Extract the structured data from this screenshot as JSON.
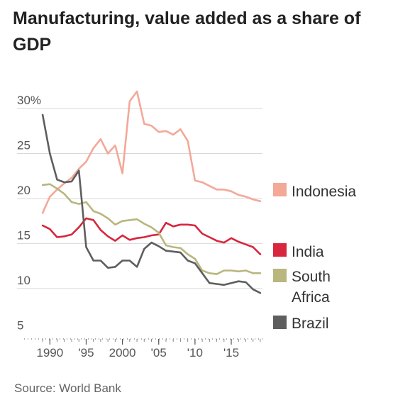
{
  "title": "Manufacturing, value added as a share of GDP",
  "source": "Source: World Bank",
  "chart_data": {
    "type": "line",
    "title": "Manufacturing, value added as a share of GDP",
    "xlabel": "",
    "ylabel": "",
    "xlim": [
      1988.6,
      2019.3
    ],
    "ylim": [
      4,
      33
    ],
    "grid": true,
    "legend": "right, at line ends",
    "y_ticks": [
      {
        "value": 30,
        "label": "30%"
      },
      {
        "value": 25,
        "label": "25"
      },
      {
        "value": 20,
        "label": "20"
      },
      {
        "value": 15,
        "label": "15"
      },
      {
        "value": 10,
        "label": "10"
      },
      {
        "value": 5,
        "label": "5"
      }
    ],
    "x_ticks": [
      {
        "value": 1990,
        "label": "1990"
      },
      {
        "value": 1995,
        "label": "'95"
      },
      {
        "value": 2000,
        "label": "2000"
      },
      {
        "value": 2005,
        "label": "'05"
      },
      {
        "value": 2010,
        "label": "'10"
      },
      {
        "value": 2015,
        "label": "'15"
      }
    ],
    "x": [
      1989,
      1990,
      1991,
      1992,
      1993,
      1994,
      1995,
      1996,
      1997,
      1998,
      1999,
      2000,
      2001,
      2002,
      2003,
      2004,
      2005,
      2006,
      2007,
      2008,
      2009,
      2010,
      2011,
      2012,
      2013,
      2014,
      2015,
      2016,
      2017,
      2018,
      2019
    ],
    "series": [
      {
        "name": "Indonesia",
        "color": "#f4a898",
        "legend": [
          "Indonesia"
        ],
        "values": [
          18.4,
          20.2,
          21.0,
          21.7,
          22.3,
          23.3,
          24.1,
          25.6,
          26.6,
          25.0,
          25.9,
          22.8,
          30.8,
          31.9,
          28.3,
          28.1,
          27.4,
          27.5,
          27.1,
          27.7,
          26.4,
          22.0,
          21.8,
          21.4,
          21.0,
          21.0,
          20.8,
          20.4,
          20.2,
          19.9,
          19.7
        ]
      },
      {
        "name": "India",
        "color": "#d7263d",
        "legend": [
          "India"
        ],
        "values": [
          17.0,
          16.6,
          15.7,
          15.8,
          16.0,
          16.8,
          17.8,
          17.6,
          16.5,
          15.8,
          15.3,
          15.9,
          15.4,
          15.6,
          15.7,
          15.9,
          16.0,
          17.3,
          16.9,
          17.1,
          17.1,
          17.0,
          16.1,
          15.7,
          15.3,
          15.1,
          15.6,
          15.2,
          14.9,
          14.6,
          13.8
        ]
      },
      {
        "name": "South Africa",
        "color": "#b9b67e",
        "legend": [
          "South",
          "Africa"
        ],
        "values": [
          21.5,
          21.6,
          21.1,
          20.5,
          19.6,
          19.4,
          19.6,
          18.6,
          18.3,
          17.8,
          17.1,
          17.5,
          17.6,
          17.7,
          17.2,
          16.8,
          16.2,
          14.8,
          14.6,
          14.5,
          13.8,
          13.3,
          12.0,
          11.7,
          11.6,
          12.0,
          12.0,
          11.9,
          12.0,
          11.7,
          11.7
        ]
      },
      {
        "name": "Brazil",
        "color": "#5e5e5e",
        "legend": [
          "Brazil"
        ],
        "values": [
          29.3,
          25.0,
          22.1,
          21.8,
          21.9,
          23.1,
          14.6,
          13.1,
          13.1,
          12.3,
          12.4,
          13.1,
          13.1,
          12.4,
          14.4,
          15.1,
          14.7,
          14.2,
          14.1,
          14.0,
          13.1,
          12.8,
          11.7,
          10.6,
          10.5,
          10.4,
          10.6,
          10.8,
          10.7,
          9.9,
          9.5
        ]
      }
    ]
  }
}
